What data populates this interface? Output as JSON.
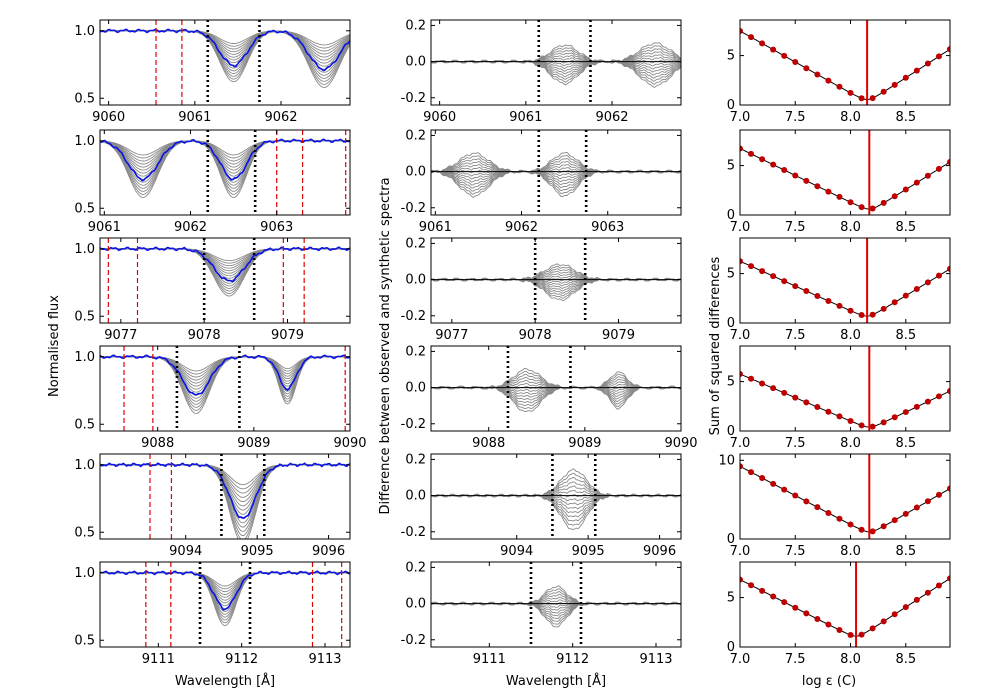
{
  "labels": {
    "left_ylabel": "Normalised flux",
    "mid_ylabel": "Difference between observed and synthetic spectra",
    "right_ylabel": "Sum of squared differences",
    "left_xlabel": "Wavelength [Å]",
    "mid_xlabel": "Wavelength [Å]",
    "right_xlabel": "log ε (C)"
  },
  "colors": {
    "observed": "#0a14e6",
    "grid_spectra": "#8a8a8a",
    "mask": "#e00000",
    "fit_points": "#c00000",
    "best_fit": "#e00000"
  },
  "chart_data": [
    {
      "type": "line",
      "panel": "spectrum",
      "row": 1,
      "xlim": [
        9059.9,
        9062.8
      ],
      "ylim": [
        0.45,
        1.08
      ],
      "xticks": [
        9060,
        9061,
        9062
      ],
      "yticks": [
        0.5,
        1.0
      ],
      "lines": [
        {
          "center": 9061.45,
          "depth": 0.27,
          "width": 0.16
        },
        {
          "center": 9062.5,
          "depth": 0.3,
          "width": 0.18
        }
      ],
      "line_window": [
        9061.15,
        9061.75
      ],
      "masks": [
        9060.55,
        9060.85
      ]
    },
    {
      "type": "line",
      "panel": "spectrum",
      "row": 2,
      "xlim": [
        9060.95,
        9063.85
      ],
      "ylim": [
        0.45,
        1.08
      ],
      "xticks": [
        9061,
        9062,
        9063
      ],
      "yticks": [
        0.5,
        1.0
      ],
      "lines": [
        {
          "center": 9061.45,
          "depth": 0.3,
          "width": 0.17
        },
        {
          "center": 9062.5,
          "depth": 0.3,
          "width": 0.15
        }
      ],
      "line_window": [
        9062.2,
        9062.75
      ],
      "masks": [
        9063.0,
        9063.3,
        9063.8
      ]
    },
    {
      "type": "line",
      "panel": "spectrum",
      "row": 3,
      "xlim": [
        9076.75,
        9079.75
      ],
      "ylim": [
        0.45,
        1.08
      ],
      "xticks": [
        9077,
        9078,
        9079
      ],
      "yticks": [
        0.5,
        1.0
      ],
      "lines": [
        {
          "center": 9078.3,
          "depth": 0.25,
          "width": 0.18
        }
      ],
      "line_window": [
        9078.0,
        9078.6
      ],
      "masks": [
        9076.85,
        9077.2,
        9078.95,
        9079.2
      ]
    },
    {
      "type": "line",
      "panel": "spectrum",
      "row": 4,
      "xlim": [
        9087.4,
        9090.0
      ],
      "ylim": [
        0.45,
        1.08
      ],
      "xticks": [
        9088,
        9089,
        9090
      ],
      "yticks": [
        0.5,
        1.0
      ],
      "lines": [
        {
          "center": 9088.4,
          "depth": 0.3,
          "width": 0.14
        },
        {
          "center": 9089.35,
          "depth": 0.25,
          "width": 0.09
        }
      ],
      "line_window": [
        9088.2,
        9088.85
      ],
      "masks": [
        9087.65,
        9087.95,
        9089.95
      ]
    },
    {
      "type": "line",
      "panel": "spectrum",
      "row": 5,
      "xlim": [
        9092.8,
        9096.3
      ],
      "ylim": [
        0.45,
        1.08
      ],
      "xticks": [
        9094,
        9095,
        9096
      ],
      "yticks": [
        0.5,
        1.0
      ],
      "lines": [
        {
          "center": 9094.8,
          "depth": 0.42,
          "width": 0.18
        }
      ],
      "line_window": [
        9094.5,
        9095.1
      ],
      "masks": [
        9093.5,
        9093.8
      ]
    },
    {
      "type": "line",
      "panel": "spectrum",
      "row": 6,
      "xlim": [
        9110.3,
        9113.3
      ],
      "ylim": [
        0.45,
        1.08
      ],
      "xticks": [
        9111,
        9112,
        9113
      ],
      "yticks": [
        0.5,
        1.0
      ],
      "lines": [
        {
          "center": 9111.8,
          "depth": 0.28,
          "width": 0.13
        }
      ],
      "line_window": [
        9111.5,
        9112.1
      ],
      "masks": [
        9110.85,
        9111.15,
        9112.85,
        9113.2
      ]
    },
    {
      "type": "line",
      "panel": "residual",
      "row": 1,
      "xlim": [
        9059.9,
        9062.8
      ],
      "ylim": [
        -0.24,
        0.23
      ],
      "xticks": [
        9060,
        9061,
        9062
      ],
      "yticks": [
        0.2,
        0.0,
        -0.2
      ],
      "line_window": [
        9061.15,
        9061.75
      ]
    },
    {
      "type": "line",
      "panel": "residual",
      "row": 2,
      "xlim": [
        9060.95,
        9063.85
      ],
      "ylim": [
        -0.24,
        0.23
      ],
      "xticks": [
        9061,
        9062,
        9063
      ],
      "yticks": [
        0.2,
        0.0,
        -0.2
      ],
      "line_window": [
        9062.2,
        9062.75
      ]
    },
    {
      "type": "line",
      "panel": "residual",
      "row": 3,
      "xlim": [
        9076.75,
        9079.75
      ],
      "ylim": [
        -0.24,
        0.23
      ],
      "xticks": [
        9077,
        9078,
        9079
      ],
      "yticks": [
        0.2,
        0.0,
        -0.2
      ],
      "line_window": [
        9078.0,
        9078.6
      ]
    },
    {
      "type": "line",
      "panel": "residual",
      "row": 4,
      "xlim": [
        9087.4,
        9090.0
      ],
      "ylim": [
        -0.24,
        0.23
      ],
      "xticks": [
        9088,
        9089,
        9090
      ],
      "yticks": [
        0.2,
        0.0,
        -0.2
      ],
      "line_window": [
        9088.2,
        9088.85
      ]
    },
    {
      "type": "line",
      "panel": "residual",
      "row": 5,
      "xlim": [
        9092.8,
        9096.3
      ],
      "ylim": [
        -0.24,
        0.23
      ],
      "xticks": [
        9094,
        9095,
        9096
      ],
      "yticks": [
        0.2,
        0.0,
        -0.2
      ],
      "line_window": [
        9094.5,
        9095.1
      ]
    },
    {
      "type": "line",
      "panel": "residual",
      "row": 6,
      "xlim": [
        9110.3,
        9113.3
      ],
      "ylim": [
        -0.24,
        0.23
      ],
      "xticks": [
        9111,
        9112,
        9113
      ],
      "yticks": [
        0.2,
        0.0,
        -0.2
      ],
      "line_window": [
        9111.5,
        9112.1
      ]
    },
    {
      "type": "scatter",
      "panel": "chi2",
      "row": 1,
      "xlim": [
        7.0,
        8.9
      ],
      "ylim": [
        0,
        8.6
      ],
      "xticks": [
        7.0,
        7.5,
        8.0,
        8.5
      ],
      "yticks": [
        0,
        5
      ],
      "best": 8.15,
      "ymin": 0.55,
      "y_at_left": 7.8,
      "y_at_right": 6.0
    },
    {
      "type": "scatter",
      "panel": "chi2",
      "row": 2,
      "xlim": [
        7.0,
        8.9
      ],
      "ylim": [
        0,
        8.6
      ],
      "xticks": [
        7.0,
        7.5,
        8.0,
        8.5
      ],
      "yticks": [
        0,
        5
      ],
      "best": 8.17,
      "ymin": 0.6,
      "y_at_left": 7.0,
      "y_at_right": 5.7
    },
    {
      "type": "scatter",
      "panel": "chi2",
      "row": 3,
      "xlim": [
        7.0,
        8.9
      ],
      "ylim": [
        0,
        8.6
      ],
      "xticks": [
        7.0,
        7.5,
        8.0,
        8.5
      ],
      "yticks": [
        0,
        5
      ],
      "best": 8.15,
      "ymin": 0.7,
      "y_at_left": 6.5,
      "y_at_right": 5.8
    },
    {
      "type": "scatter",
      "panel": "chi2",
      "row": 4,
      "xlim": [
        7.0,
        8.9
      ],
      "ylim": [
        0,
        8.6
      ],
      "xticks": [
        7.0,
        7.5,
        8.0,
        8.5
      ],
      "yticks": [
        0,
        5
      ],
      "best": 8.17,
      "ymin": 0.4,
      "y_at_left": 6.0,
      "y_at_right": 4.3
    },
    {
      "type": "scatter",
      "panel": "chi2",
      "row": 5,
      "xlim": [
        7.0,
        8.9
      ],
      "ylim": [
        0,
        10.8
      ],
      "xticks": [
        7.0,
        7.5,
        8.0,
        8.5
      ],
      "yticks": [
        0,
        10
      ],
      "best": 8.17,
      "ymin": 0.9,
      "y_at_left": 9.6,
      "y_at_right": 6.8
    },
    {
      "type": "scatter",
      "panel": "chi2",
      "row": 6,
      "xlim": [
        7.0,
        8.9
      ],
      "ylim": [
        0,
        8.6
      ],
      "xticks": [
        7.0,
        7.5,
        8.0,
        8.5
      ],
      "yticks": [
        0,
        5
      ],
      "best": 8.05,
      "ymin": 1.1,
      "y_at_left": 7.1,
      "y_at_right": 7.3
    }
  ]
}
